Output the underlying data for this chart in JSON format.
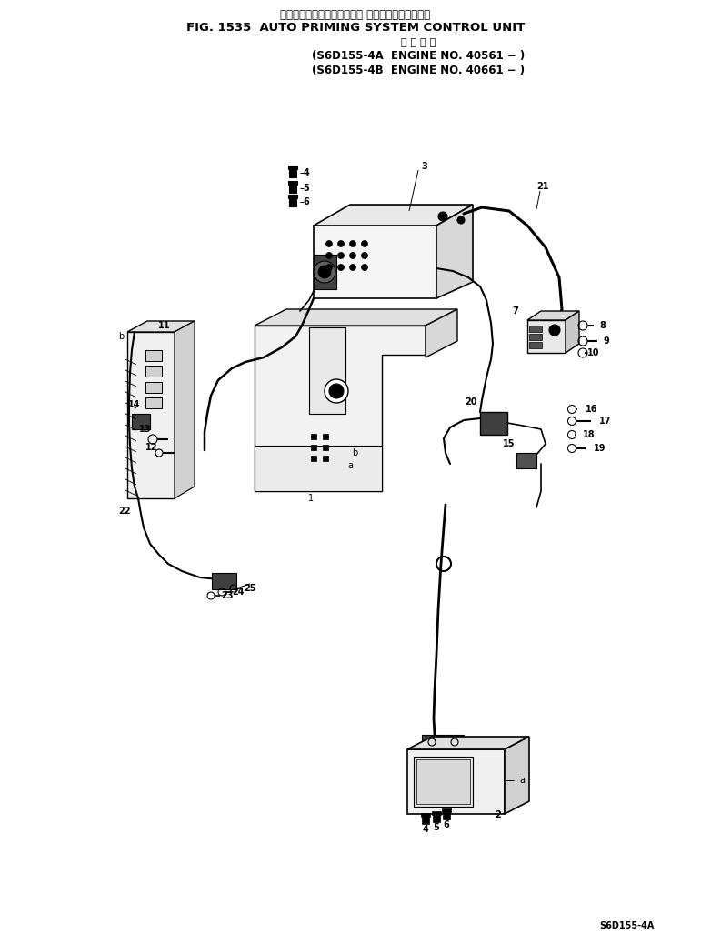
{
  "title_jp": "オートプライミングシステム コントロールユニット",
  "title_en": "FIG. 1535  AUTO PRIMING SYSTEM CONTROL UNIT",
  "subtitle_jp": "適 用 号 機",
  "line1": "(S6D155-4A  ENGINE NO. 40561 − )",
  "line2": "(S6D155-4B  ENGINE NO. 40661 − )",
  "model": "S6D155-4A",
  "bg_color": "#ffffff",
  "text_color": "#000000"
}
